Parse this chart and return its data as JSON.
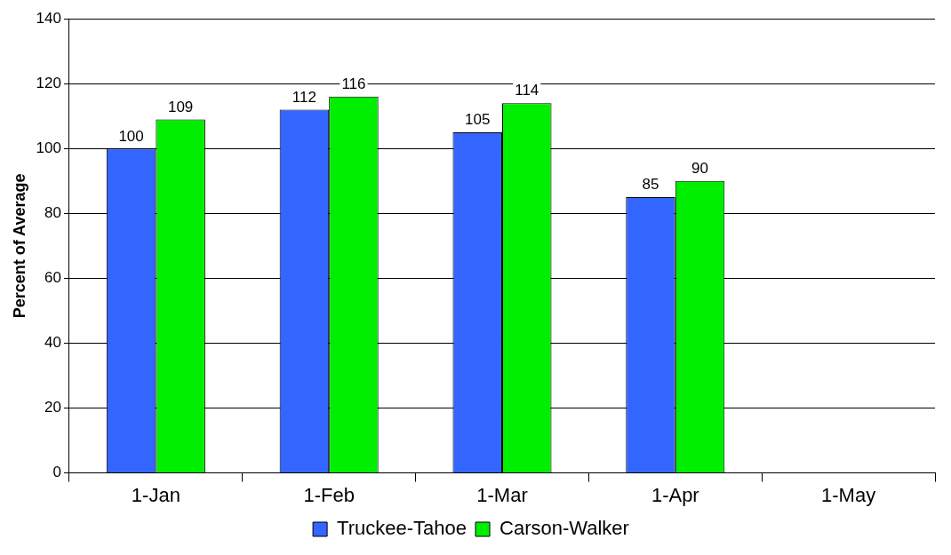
{
  "chart_data": {
    "type": "bar",
    "ylabel": "Percent of Average",
    "categories": [
      "1-Jan",
      "1-Feb",
      "1-Mar",
      "1-Apr",
      "1-May"
    ],
    "series": [
      {
        "name": "Truckee-Tahoe",
        "color": "#3366ff",
        "values": [
          100,
          112,
          105,
          85,
          null
        ]
      },
      {
        "name": "Carson-Walker",
        "color": "#00ee00",
        "values": [
          109,
          116,
          114,
          90,
          null
        ]
      }
    ],
    "ylim": [
      0,
      140
    ],
    "yticks": [
      0,
      20,
      40,
      60,
      80,
      100,
      120,
      140
    ],
    "grid": "y",
    "legend": "bottom",
    "data_labels": true
  }
}
